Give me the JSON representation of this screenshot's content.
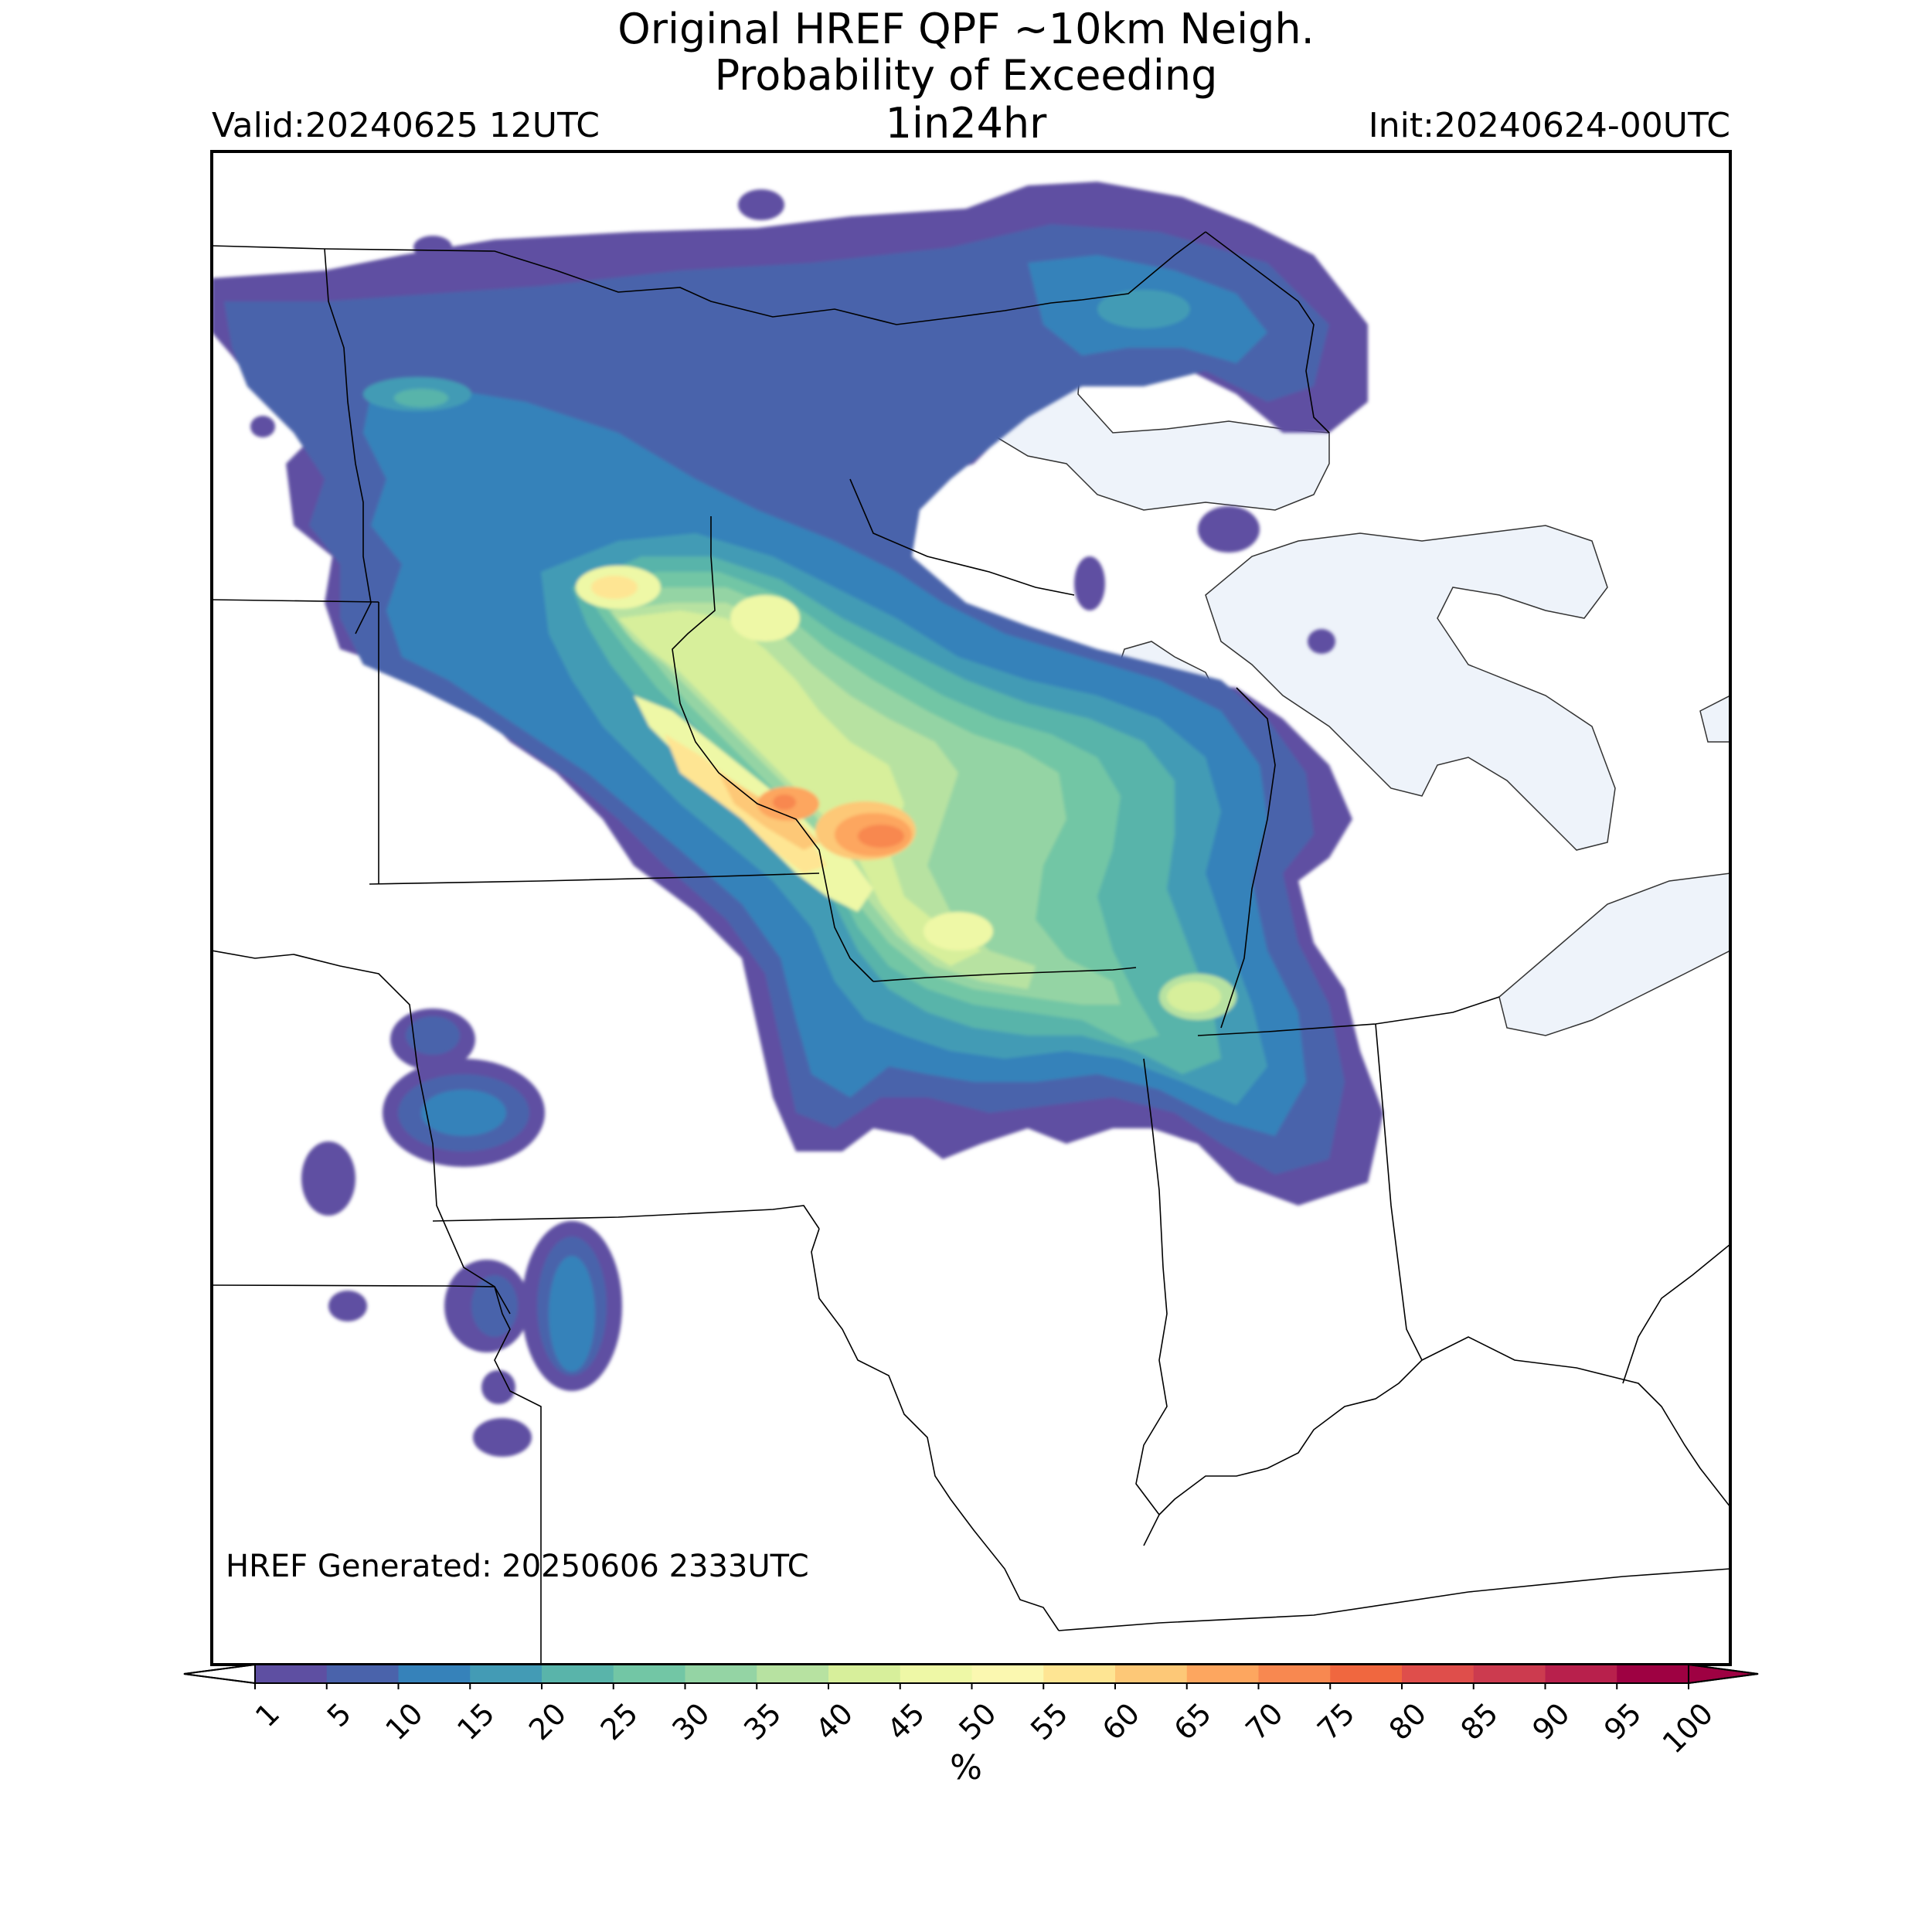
{
  "title": {
    "line1": "Original HREF QPF ~10km Neigh.",
    "line2": "Probability of Exceeding",
    "line3": "1in24hr"
  },
  "valid_label": "Valid:20240625 12UTC",
  "init_label": "Init:20240624-00UTC",
  "generated_label": "HREF Generated: 20250606 2333UTC",
  "colorbar": {
    "unit_label": "%",
    "ticks": [
      "1",
      "5",
      "10",
      "15",
      "20",
      "25",
      "30",
      "35",
      "40",
      "45",
      "50",
      "55",
      "60",
      "65",
      "70",
      "75",
      "80",
      "85",
      "90",
      "95",
      "100"
    ],
    "colors": [
      "#5e4fa2",
      "#4a63ab",
      "#3682ba",
      "#439bb5",
      "#59b4aa",
      "#72c6a5",
      "#94d4a4",
      "#b7e2a1",
      "#d7ef9b",
      "#eef8a6",
      "#fbf8b0",
      "#fee593",
      "#fdc877",
      "#fda65f",
      "#f88850",
      "#f0673f",
      "#df4e4b",
      "#cc3b4f",
      "#b8204c",
      "#9e0142"
    ]
  },
  "map_colors": {
    "lake_fill": "#eef3fa",
    "border": "#000000",
    "prob_levels": [
      "#5e4fa2",
      "#4a63ab",
      "#3682ba",
      "#439bb5",
      "#59b4aa",
      "#72c6a5",
      "#94d4a4",
      "#b7e2a1",
      "#d7ef9b",
      "#eef8a6",
      "#fee593",
      "#fdc877",
      "#fda65f",
      "#f88850"
    ]
  },
  "chart_data": {
    "type": "heatmap",
    "title": "Original HREF QPF ~10km Neigh. Probability of Exceeding 1in24hr",
    "units": "%",
    "levels": [
      1,
      5,
      10,
      15,
      20,
      25,
      30,
      35,
      40,
      45,
      50,
      55,
      60,
      65,
      70,
      75,
      80,
      85,
      90,
      95,
      100
    ],
    "max_probability_shown": "65-70",
    "extend": "both"
  }
}
